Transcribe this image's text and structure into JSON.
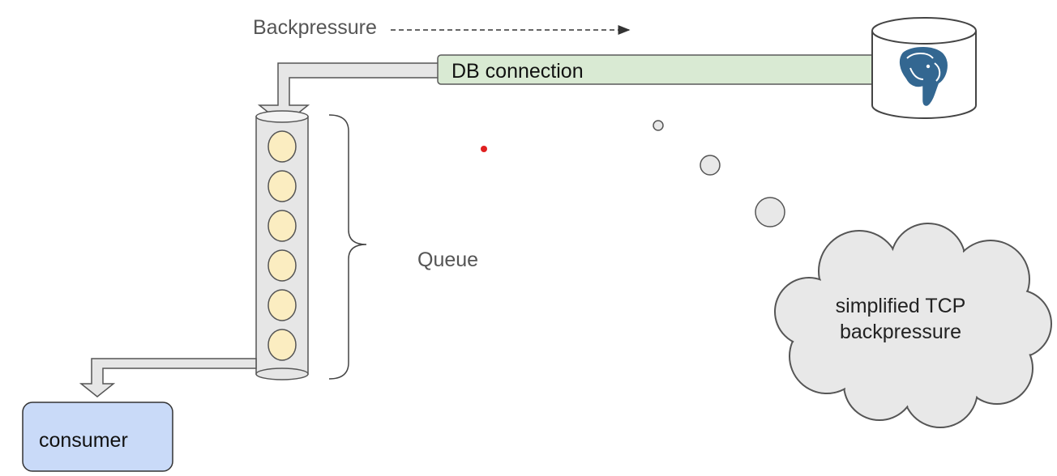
{
  "backpressure_label": "Backpressure",
  "db_connection_label": "DB connection",
  "queue_label": "Queue",
  "consumer_label": "consumer",
  "thought_line1": "simplified TCP",
  "thought_line2": "backpressure",
  "database_icon": "postgresql-elephant-icon",
  "queue_item_count": 6,
  "colors": {
    "db_connection_fill": "#d9ead3",
    "db_connection_stroke": "#5a5a5a",
    "queue_item_fill": "#fbedc1",
    "consumer_fill": "#c9daf8",
    "pipe_fill": "#e6e6e6",
    "postgres_blue": "#336791",
    "pointer_dot": "#e02020"
  }
}
